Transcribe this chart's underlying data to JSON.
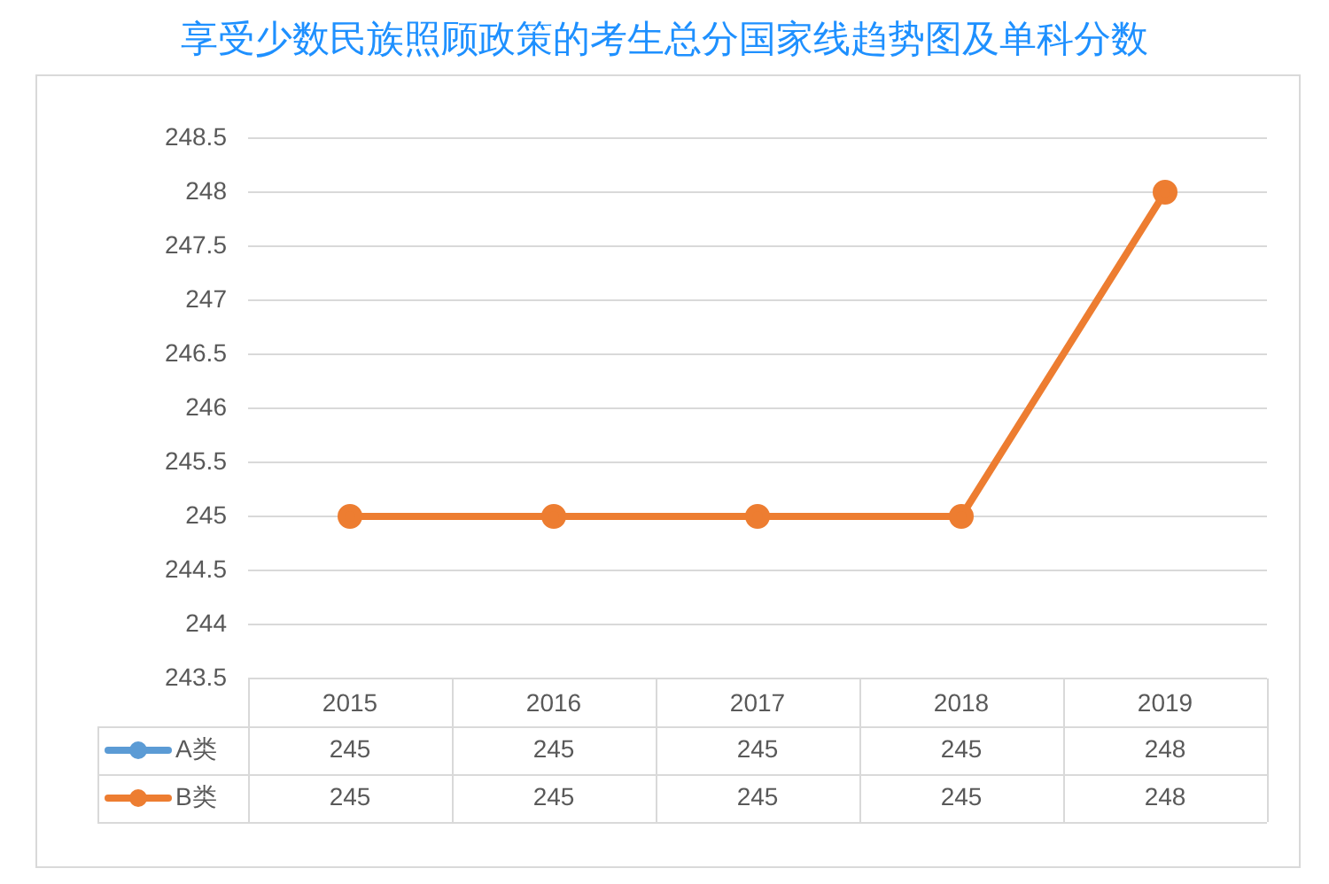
{
  "chart_data": {
    "type": "line",
    "title": "享受少数民族照顾政策的考生总分国家线趋势图及单科分数",
    "categories": [
      "2015",
      "2016",
      "2017",
      "2018",
      "2019"
    ],
    "series": [
      {
        "name": "A类",
        "color": "#5b9bd5",
        "values": [
          null,
          null,
          null,
          null,
          null
        ],
        "value_labels": [
          "245",
          "245",
          "245",
          "245",
          "248"
        ]
      },
      {
        "name": "B类",
        "color": "#ed7d31",
        "values": [
          245,
          245,
          245,
          245,
          248
        ],
        "value_labels": [
          "245",
          "245",
          "245",
          "245",
          "248"
        ]
      }
    ],
    "ylim": [
      243.5,
      248.5
    ],
    "yticks": [
      243.5,
      244,
      244.5,
      245,
      245.5,
      246,
      246.5,
      247,
      247.5,
      248,
      248.5
    ],
    "grid": "y",
    "legend": "bottom",
    "marker": "circle",
    "line_style": "solid"
  }
}
